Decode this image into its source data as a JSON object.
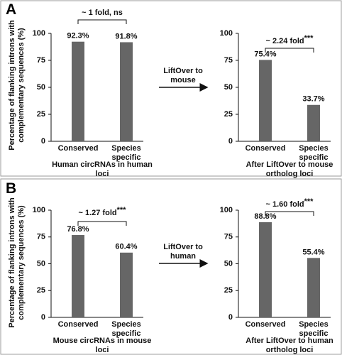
{
  "panels": [
    {
      "label": "A",
      "arrow_text": "LiftOver to mouse"
    },
    {
      "label": "B",
      "arrow_text": "LiftOver to human"
    }
  ],
  "chart_data": [
    {
      "type": "bar",
      "categories": [
        "Conserved",
        "Species specific"
      ],
      "values": [
        92.3,
        91.8
      ],
      "value_labels": [
        "92.3%",
        "91.8%"
      ],
      "color": "#666666",
      "ylim": [
        0,
        100
      ],
      "yticks": [
        0,
        25,
        50,
        75,
        100
      ],
      "xlabel": "Human circRNAs in human loci",
      "ylabel": "Percentage of flanking introns with complementary sequences (%)",
      "bracket": {
        "text": "~ 1 fold, ns"
      }
    },
    {
      "type": "bar",
      "categories": [
        "Conserved",
        "Species specific"
      ],
      "values": [
        75.4,
        33.7
      ],
      "value_labels": [
        "75.4%",
        "33.7%"
      ],
      "color": "#666666",
      "ylim": [
        0,
        100
      ],
      "yticks": [
        0,
        25,
        50,
        75,
        100
      ],
      "xlabel": "After LiftOver to mouse ortholog loci",
      "bracket": {
        "text": "~ 2.24 fold",
        "sig": "***"
      }
    },
    {
      "type": "bar",
      "categories": [
        "Conserved",
        "Species specific"
      ],
      "values": [
        76.8,
        60.4
      ],
      "value_labels": [
        "76.8%",
        "60.4%"
      ],
      "color": "#666666",
      "ylim": [
        0,
        100
      ],
      "yticks": [
        0,
        25,
        50,
        75,
        100
      ],
      "xlabel": "Mouse circRNAs in mouse loci",
      "ylabel": "Percentage of flanking introns with complementary sequences (%)",
      "bracket": {
        "text": "~ 1.27 fold",
        "sig": "***"
      }
    },
    {
      "type": "bar",
      "categories": [
        "Conserved",
        "Species specific"
      ],
      "values": [
        88.8,
        55.4
      ],
      "value_labels": [
        "88.8%",
        "55.4%"
      ],
      "color": "#666666",
      "ylim": [
        0,
        100
      ],
      "yticks": [
        0,
        25,
        50,
        75,
        100
      ],
      "xlabel": "After LiftOver to human ortholog loci",
      "bracket": {
        "text": "~ 1.60 fold",
        "sig": "***"
      }
    }
  ]
}
